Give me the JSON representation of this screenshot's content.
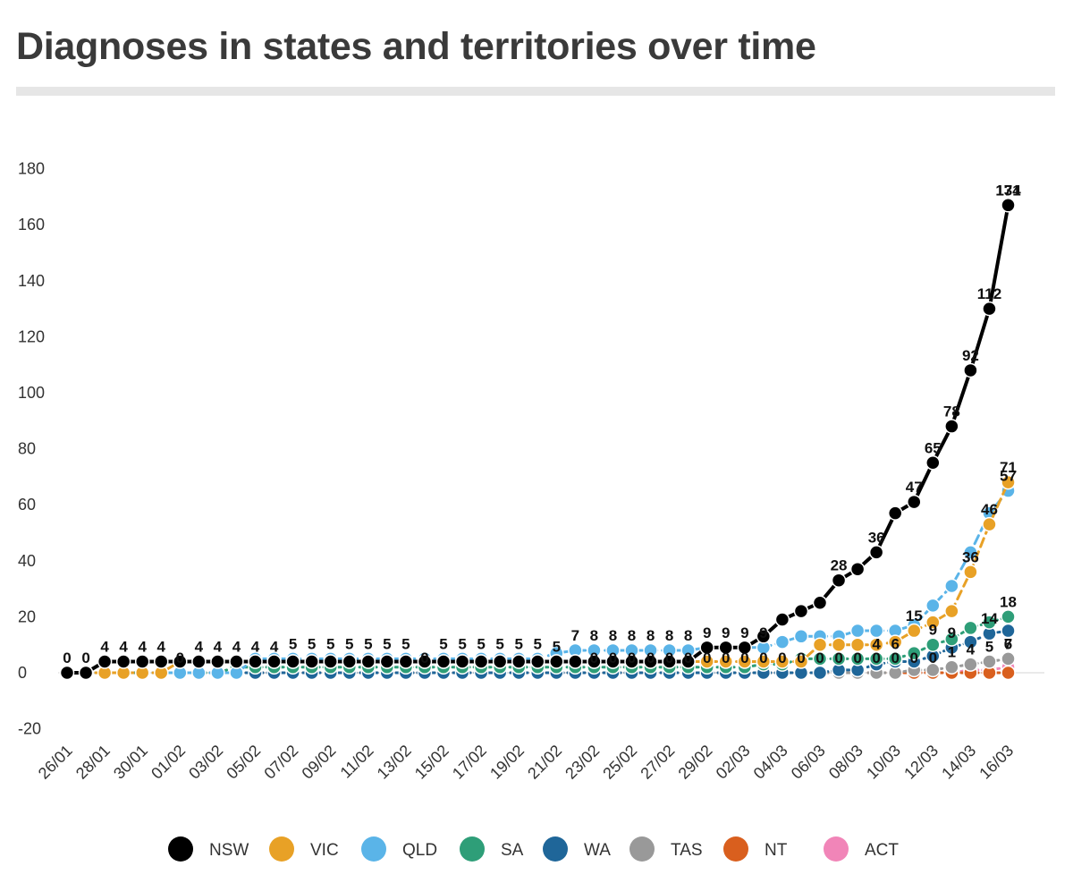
{
  "page": {
    "title": "Diagnoses in states and territories over time"
  },
  "chart_data": {
    "type": "line",
    "title": "Diagnoses in states and territories over time",
    "xlabel": "",
    "ylabel": "",
    "ylim": [
      -20,
      180
    ],
    "yticks": [
      -20,
      0,
      20,
      40,
      60,
      80,
      100,
      120,
      140,
      160,
      180
    ],
    "grid": false,
    "legend": "bottom",
    "x": [
      "26/01",
      "27/01",
      "28/01",
      "29/01",
      "30/01",
      "31/01",
      "01/02",
      "02/02",
      "03/02",
      "04/02",
      "05/02",
      "06/02",
      "07/02",
      "08/02",
      "09/02",
      "10/02",
      "11/02",
      "12/02",
      "13/02",
      "14/02",
      "15/02",
      "16/02",
      "17/02",
      "18/02",
      "19/02",
      "20/02",
      "21/02",
      "22/02",
      "23/02",
      "24/02",
      "25/02",
      "26/02",
      "27/02",
      "28/02",
      "29/02",
      "01/03",
      "02/03",
      "03/03",
      "04/03",
      "05/03",
      "06/03",
      "07/03",
      "08/03",
      "09/03",
      "10/03",
      "11/03",
      "12/03",
      "13/03",
      "14/03",
      "15/03",
      "16/03"
    ],
    "xtick_labels": [
      "26/01",
      "28/01",
      "30/01",
      "01/02",
      "03/02",
      "05/02",
      "07/02",
      "09/02",
      "11/02",
      "13/02",
      "15/02",
      "17/02",
      "19/02",
      "21/02",
      "23/02",
      "25/02",
      "27/02",
      "29/02",
      "02/03",
      "04/03",
      "06/03",
      "08/03",
      "10/03",
      "12/03",
      "14/03",
      "16/03"
    ],
    "series": [
      {
        "name": "NSW",
        "color": "#000000",
        "style": "solid",
        "values": [
          0,
          0,
          4,
          4,
          4,
          4,
          4,
          4,
          4,
          4,
          4,
          4,
          4,
          4,
          4,
          4,
          4,
          4,
          4,
          4,
          4,
          4,
          4,
          4,
          4,
          4,
          4,
          4,
          4,
          4,
          4,
          4,
          4,
          4,
          9,
          9,
          9,
          13,
          19,
          22,
          25,
          33,
          37,
          43,
          57,
          61,
          75,
          88,
          108,
          130,
          167
        ]
      },
      {
        "name": "VIC",
        "color": "#e8a126",
        "style": "dashed",
        "values": [
          0,
          0,
          0,
          0,
          0,
          0,
          4,
          4,
          4,
          4,
          4,
          4,
          4,
          4,
          4,
          4,
          4,
          4,
          4,
          4,
          4,
          4,
          4,
          4,
          4,
          4,
          4,
          4,
          4,
          4,
          4,
          4,
          4,
          4,
          4,
          4,
          4,
          4,
          4,
          4,
          10,
          10,
          10,
          10,
          11,
          15,
          18,
          22,
          36,
          53,
          68
        ]
      },
      {
        "name": "QLD",
        "color": "#5ab4e8",
        "style": "dashed",
        "values": [
          0,
          0,
          0,
          0,
          0,
          0,
          0,
          0,
          0,
          0,
          5,
          5,
          5,
          5,
          5,
          5,
          5,
          5,
          5,
          5,
          5,
          5,
          5,
          5,
          5,
          5,
          7,
          8,
          8,
          8,
          8,
          8,
          8,
          8,
          9,
          9,
          9,
          9,
          11,
          13,
          13,
          13,
          15,
          15,
          15,
          17,
          24,
          31,
          43,
          57,
          65
        ]
      },
      {
        "name": "SA",
        "color": "#2e9e78",
        "style": "dotted",
        "values": [
          0,
          0,
          0,
          0,
          0,
          0,
          0,
          0,
          0,
          2,
          2,
          2,
          2,
          2,
          2,
          2,
          2,
          2,
          2,
          2,
          2,
          2,
          2,
          2,
          2,
          2,
          2,
          2,
          2,
          2,
          2,
          2,
          2,
          2,
          2,
          2,
          2,
          3,
          3,
          5,
          5,
          5,
          5,
          5,
          5,
          7,
          10,
          12,
          16,
          18,
          20
        ]
      },
      {
        "name": "WA",
        "color": "#1f6699",
        "style": "dotted",
        "values": [
          0,
          0,
          0,
          0,
          0,
          0,
          0,
          0,
          0,
          0,
          0,
          0,
          0,
          0,
          0,
          0,
          0,
          0,
          0,
          0,
          0,
          0,
          0,
          0,
          0,
          0,
          0,
          0,
          0,
          0,
          0,
          0,
          0,
          0,
          0,
          0,
          0,
          0,
          0,
          0,
          0,
          1,
          1,
          3,
          4,
          4,
          6,
          9,
          11,
          14,
          15
        ]
      },
      {
        "name": "TAS",
        "color": "#999999",
        "style": "dotted",
        "values": [
          0,
          0,
          0,
          0,
          0,
          0,
          0,
          0,
          0,
          0,
          0,
          0,
          0,
          0,
          0,
          0,
          0,
          0,
          0,
          0,
          0,
          0,
          0,
          0,
          0,
          0,
          0,
          0,
          0,
          0,
          0,
          0,
          0,
          0,
          0,
          0,
          0,
          0,
          0,
          0,
          0,
          0,
          0,
          0,
          0,
          1,
          1,
          2,
          3,
          4,
          5
        ]
      },
      {
        "name": "NT",
        "color": "#d95f1e",
        "style": "dotted",
        "values": [
          0,
          0,
          0,
          0,
          0,
          0,
          0,
          0,
          0,
          0,
          0,
          0,
          0,
          0,
          0,
          0,
          0,
          0,
          0,
          0,
          0,
          0,
          0,
          0,
          0,
          0,
          0,
          0,
          0,
          0,
          0,
          0,
          0,
          0,
          0,
          0,
          0,
          0,
          0,
          0,
          0,
          0,
          0,
          0,
          0,
          0,
          0,
          0,
          0,
          0,
          0
        ]
      },
      {
        "name": "ACT",
        "color": "#f185b8",
        "style": "dotted",
        "values": [
          0,
          0,
          0,
          0,
          0,
          0,
          0,
          0,
          0,
          0,
          0,
          0,
          0,
          0,
          0,
          0,
          0,
          0,
          0,
          0,
          0,
          0,
          0,
          0,
          0,
          0,
          0,
          0,
          0,
          0,
          0,
          0,
          0,
          0,
          0,
          0,
          0,
          0,
          0,
          0,
          0,
          0,
          0,
          0,
          0,
          0,
          0,
          0,
          1,
          1,
          2
        ]
      }
    ],
    "annotations": [
      {
        "x": "26/01",
        "label": "0"
      },
      {
        "x": "27/01",
        "label": "0"
      },
      {
        "x": "28/01",
        "label": "4"
      },
      {
        "x": "29/01",
        "label": "4"
      },
      {
        "x": "30/01",
        "label": "4"
      },
      {
        "x": "31/01",
        "label": "4"
      },
      {
        "x": "01/02",
        "label": "0"
      },
      {
        "x": "02/02",
        "label": "4"
      },
      {
        "x": "03/02",
        "label": "4"
      },
      {
        "x": "04/02",
        "label": "4"
      },
      {
        "x": "05/02",
        "label": "4"
      },
      {
        "x": "06/02",
        "label": "4"
      },
      {
        "x": "07/02",
        "label": "5"
      },
      {
        "x": "08/02",
        "label": "5"
      },
      {
        "x": "09/02",
        "label": "5"
      },
      {
        "x": "10/02",
        "label": "5"
      },
      {
        "x": "11/02",
        "label": "5"
      },
      {
        "x": "12/02",
        "label": "5"
      },
      {
        "x": "13/02",
        "label": "5"
      },
      {
        "x": "14/02",
        "label": "0"
      },
      {
        "x": "15/02",
        "label": "5"
      },
      {
        "x": "16/02",
        "label": "5"
      },
      {
        "x": "17/02",
        "label": "5"
      },
      {
        "x": "18/02",
        "label": "5"
      },
      {
        "x": "19/02",
        "label": "5"
      },
      {
        "x": "20/02",
        "label": "5"
      },
      {
        "x": "21/02",
        "label": "5"
      },
      {
        "x": "22/02",
        "label": "7"
      },
      {
        "x": "23/02",
        "label": "8"
      },
      {
        "x": "24/02",
        "label": "8"
      },
      {
        "x": "25/02",
        "label": "8"
      },
      {
        "x": "26/02",
        "label": "8"
      },
      {
        "x": "27/02",
        "label": "8"
      },
      {
        "x": "28/02",
        "label": "8"
      },
      {
        "x": "29/02",
        "label": "9"
      },
      {
        "x": "01/03",
        "label": "9"
      },
      {
        "x": "02/03",
        "label": "9"
      },
      {
        "x": "03/03",
        "label": "9"
      },
      {
        "x": "07/03",
        "label": "28"
      },
      {
        "x": "09/03",
        "label": "36"
      },
      {
        "x": "11/03",
        "label": "47"
      },
      {
        "x": "12/03",
        "label": "65"
      },
      {
        "x": "13/03",
        "label": "78"
      },
      {
        "x": "14/03",
        "label": "92"
      },
      {
        "x": "15/03",
        "label": "112"
      },
      {
        "x": "16/03",
        "label": "134"
      },
      {
        "x": "16/03",
        "label": "171"
      },
      {
        "x": "23/02",
        "label": "0"
      },
      {
        "x": "24/02",
        "label": "0"
      },
      {
        "x": "25/02",
        "label": "0"
      },
      {
        "x": "26/02",
        "label": "0"
      },
      {
        "x": "27/02",
        "label": "0"
      },
      {
        "x": "28/02",
        "label": "0"
      },
      {
        "x": "29/02",
        "label": "0"
      },
      {
        "x": "01/03",
        "label": "0"
      },
      {
        "x": "02/03",
        "label": "0"
      },
      {
        "x": "03/03",
        "label": "0"
      },
      {
        "x": "04/03",
        "label": "0"
      },
      {
        "x": "05/03",
        "label": "0"
      },
      {
        "x": "06/03",
        "label": "0"
      },
      {
        "x": "07/03",
        "label": "0"
      },
      {
        "x": "08/03",
        "label": "0"
      },
      {
        "x": "09/03",
        "label": "0"
      },
      {
        "x": "10/03",
        "label": "0"
      },
      {
        "x": "11/03",
        "label": "0"
      },
      {
        "x": "12/03",
        "label": "0"
      },
      {
        "x": "13/03",
        "label": "1"
      },
      {
        "x": "09/03",
        "label": "4"
      },
      {
        "x": "10/03",
        "label": "6"
      },
      {
        "x": "11/03",
        "label": "15"
      },
      {
        "x": "12/03",
        "label": "9"
      },
      {
        "x": "13/03",
        "label": "9"
      },
      {
        "x": "14/03",
        "label": "36"
      },
      {
        "x": "14/03",
        "label": "4"
      },
      {
        "x": "15/03",
        "label": "46"
      },
      {
        "x": "15/03",
        "label": "14"
      },
      {
        "x": "15/03",
        "label": "5"
      },
      {
        "x": "16/03",
        "label": "57"
      },
      {
        "x": "16/03",
        "label": "6"
      },
      {
        "x": "16/03",
        "label": "71"
      },
      {
        "x": "16/03",
        "label": "18"
      },
      {
        "x": "16/03",
        "label": "7"
      }
    ]
  }
}
